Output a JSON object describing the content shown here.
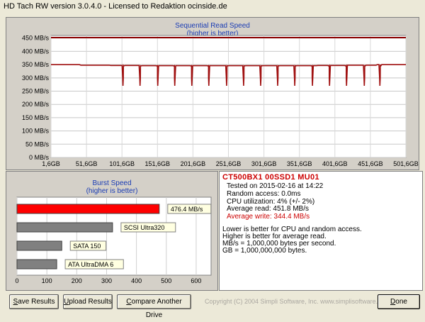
{
  "window": {
    "title": "HD Tach RW version 3.0.4.0 - Licensed to Redaktion ocinside.de"
  },
  "chart_data": [
    {
      "type": "line",
      "title": "Sequential Read Speed",
      "subtitle": "(higher is better)",
      "y_ticks": [
        "450 MB/s",
        "400 MB/s",
        "350 MB/s",
        "300 MB/s",
        "250 MB/s",
        "200 MB/s",
        "150 MB/s",
        "100 MB/s",
        "50 MB/s",
        "0 MB/s"
      ],
      "y_tick_values": [
        450,
        400,
        350,
        300,
        250,
        200,
        150,
        100,
        50,
        0
      ],
      "x_ticks": [
        "1,6GB",
        "51,6GB",
        "101,6GB",
        "151,6GB",
        "201,6GB",
        "251,6GB",
        "301,6GB",
        "351,6GB",
        "401,6GB",
        "451,6GB",
        "501,6GB"
      ],
      "x_tick_values": [
        1.6,
        51.6,
        101.6,
        151.6,
        201.6,
        251.6,
        301.6,
        351.6,
        401.6,
        451.6,
        501.6
      ],
      "ylim": [
        0,
        460
      ],
      "xlim": [
        1.6,
        501.6
      ],
      "series": [
        {
          "id": "access",
          "color": "#8b0000",
          "x": [
            1.6,
            501.6
          ],
          "y": [
            452,
            452
          ]
        },
        {
          "id": "read",
          "color": "#a01010",
          "dips": [
            103,
            127,
            152,
            176,
            200,
            224,
            249,
            273,
            297,
            321,
            345,
            370,
            394,
            418,
            443,
            465
          ],
          "dip_value": 270,
          "baseline": [
            350,
            348,
            347,
            346,
            346,
            346,
            346,
            346,
            346,
            347,
            348,
            350
          ]
        }
      ]
    },
    {
      "type": "bar",
      "title": "Burst Speed",
      "subtitle": "(higher is better)",
      "x_ticks": [
        "0",
        "100",
        "200",
        "300",
        "400",
        "500",
        "600"
      ],
      "xlim": [
        0,
        650
      ],
      "categories": [
        "476.4 MB/s",
        "SCSI Ultra320",
        "SATA 150",
        "ATA UltraDMA 6"
      ],
      "values": [
        476.4,
        320,
        150,
        133
      ],
      "colors": [
        "#ff0000",
        "#808080",
        "#808080",
        "#808080"
      ]
    }
  ],
  "info": {
    "drive": "CT500BX1 00SSD1 MU01",
    "lines": [
      "Tested on 2015-02-16 at 14:22",
      "Random access: 0.0ms",
      "CPU utilization: 4% (+/- 2%)",
      "Average read: 451.8 MB/s",
      "Average write: 344.4 MB/s"
    ],
    "notes": [
      "Lower is better for CPU and random access.",
      "Higher is better for average read.",
      "MB/s = 1,000,000 bytes per second.",
      "GB = 1,000,000,000 bytes."
    ]
  },
  "buttons": {
    "save": {
      "u": "S",
      "rest": "ave Results"
    },
    "upload": {
      "u": "U",
      "rest": "pload Results"
    },
    "compare": {
      "u": "C",
      "rest": "ompare Another Drive"
    },
    "done": {
      "u": "D",
      "rest": "one"
    }
  },
  "footer": {
    "copyright": "Copyright (C) 2004 Simpli Software, Inc. www.simplisoftware.com"
  },
  "colors": {
    "read_line": "#a01010",
    "access_line": "#8b0000",
    "burst_bar": "#ff0000",
    "gray_bar": "#808080"
  }
}
